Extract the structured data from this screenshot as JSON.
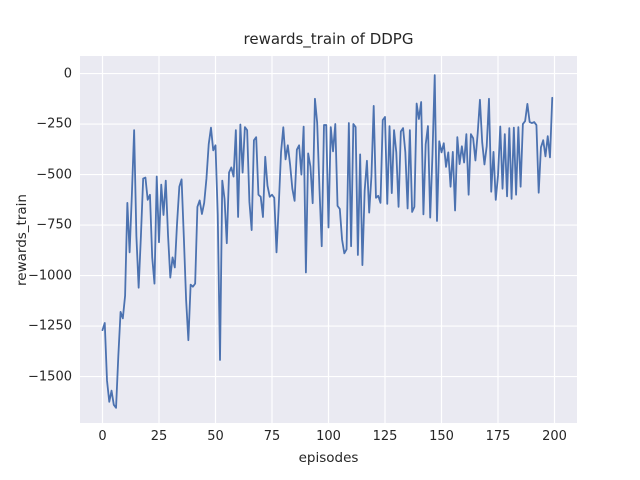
{
  "chart_data": {
    "type": "line",
    "title": "rewards_train of DDPG",
    "xlabel": "episodes",
    "ylabel": "rewards_train",
    "legend": "none",
    "grid": "on (white on #EAEAF2 seaborn darkgrid)",
    "line_color": "#4c72b0",
    "axes_bg_color": "#eaeaf2",
    "grid_color": "#ffffff",
    "text_color": "#262626",
    "xlim": [
      -9.95,
      209.95
    ],
    "ylim": [
      -1730,
      87
    ],
    "xticks": [
      0,
      25,
      50,
      75,
      100,
      125,
      150,
      175,
      200
    ],
    "xtick_labels": [
      "0",
      "25",
      "50",
      "75",
      "100",
      "125",
      "150",
      "175",
      "200"
    ],
    "yticks": [
      0,
      -250,
      -500,
      -750,
      -1000,
      -1250,
      -1500
    ],
    "ytick_labels": [
      "0",
      "−250",
      "−500",
      "−750",
      "−1000",
      "−1250",
      "−1500"
    ],
    "x_description": "episode index 0..199, one point per episode",
    "series": [
      {
        "name": "rewards_train",
        "values": [
          -1270,
          -1235,
          -1520,
          -1625,
          -1570,
          -1640,
          -1655,
          -1400,
          -1180,
          -1212,
          -1100,
          -640,
          -885,
          -600,
          -280,
          -805,
          -1060,
          -805,
          -520,
          -515,
          -625,
          -600,
          -910,
          -1040,
          -510,
          -835,
          -550,
          -700,
          -530,
          -800,
          -1010,
          -910,
          -960,
          -740,
          -560,
          -524,
          -812,
          -1120,
          -1320,
          -1045,
          -1055,
          -1040,
          -660,
          -628,
          -695,
          -640,
          -520,
          -350,
          -268,
          -380,
          -355,
          -700,
          -1418,
          -530,
          -620,
          -840,
          -490,
          -465,
          -510,
          -280,
          -710,
          -252,
          -490,
          -265,
          -280,
          -635,
          -775,
          -330,
          -315,
          -600,
          -610,
          -710,
          -412,
          -555,
          -610,
          -600,
          -615,
          -885,
          -650,
          -390,
          -266,
          -425,
          -355,
          -450,
          -570,
          -630,
          -377,
          -355,
          -500,
          -263,
          -985,
          -395,
          -460,
          -642,
          -125,
          -245,
          -570,
          -855,
          -255,
          -255,
          -762,
          -265,
          -385,
          -250,
          -655,
          -670,
          -822,
          -890,
          -870,
          -245,
          -855,
          -250,
          -265,
          -898,
          -400,
          -948,
          -580,
          -432,
          -688,
          -508,
          -160,
          -615,
          -605,
          -640,
          -230,
          -215,
          -645,
          -260,
          -592,
          -280,
          -390,
          -660,
          -287,
          -270,
          -390,
          -668,
          -280,
          -685,
          -660,
          -148,
          -225,
          -141,
          -697,
          -350,
          -260,
          -713,
          -400,
          -8,
          -730,
          -335,
          -390,
          -345,
          -462,
          -390,
          -560,
          -388,
          -678,
          -315,
          -448,
          -360,
          -440,
          -300,
          -600,
          -300,
          -320,
          -430,
          -297,
          -130,
          -340,
          -450,
          -360,
          -125,
          -585,
          -388,
          -625,
          -505,
          -262,
          -570,
          -300,
          -608,
          -270,
          -620,
          -268,
          -600,
          -265,
          -560,
          -250,
          -235,
          -150,
          -240,
          -245,
          -240,
          -255,
          -590,
          -365,
          -330,
          -410,
          -310,
          -415,
          -120
        ]
      }
    ]
  }
}
